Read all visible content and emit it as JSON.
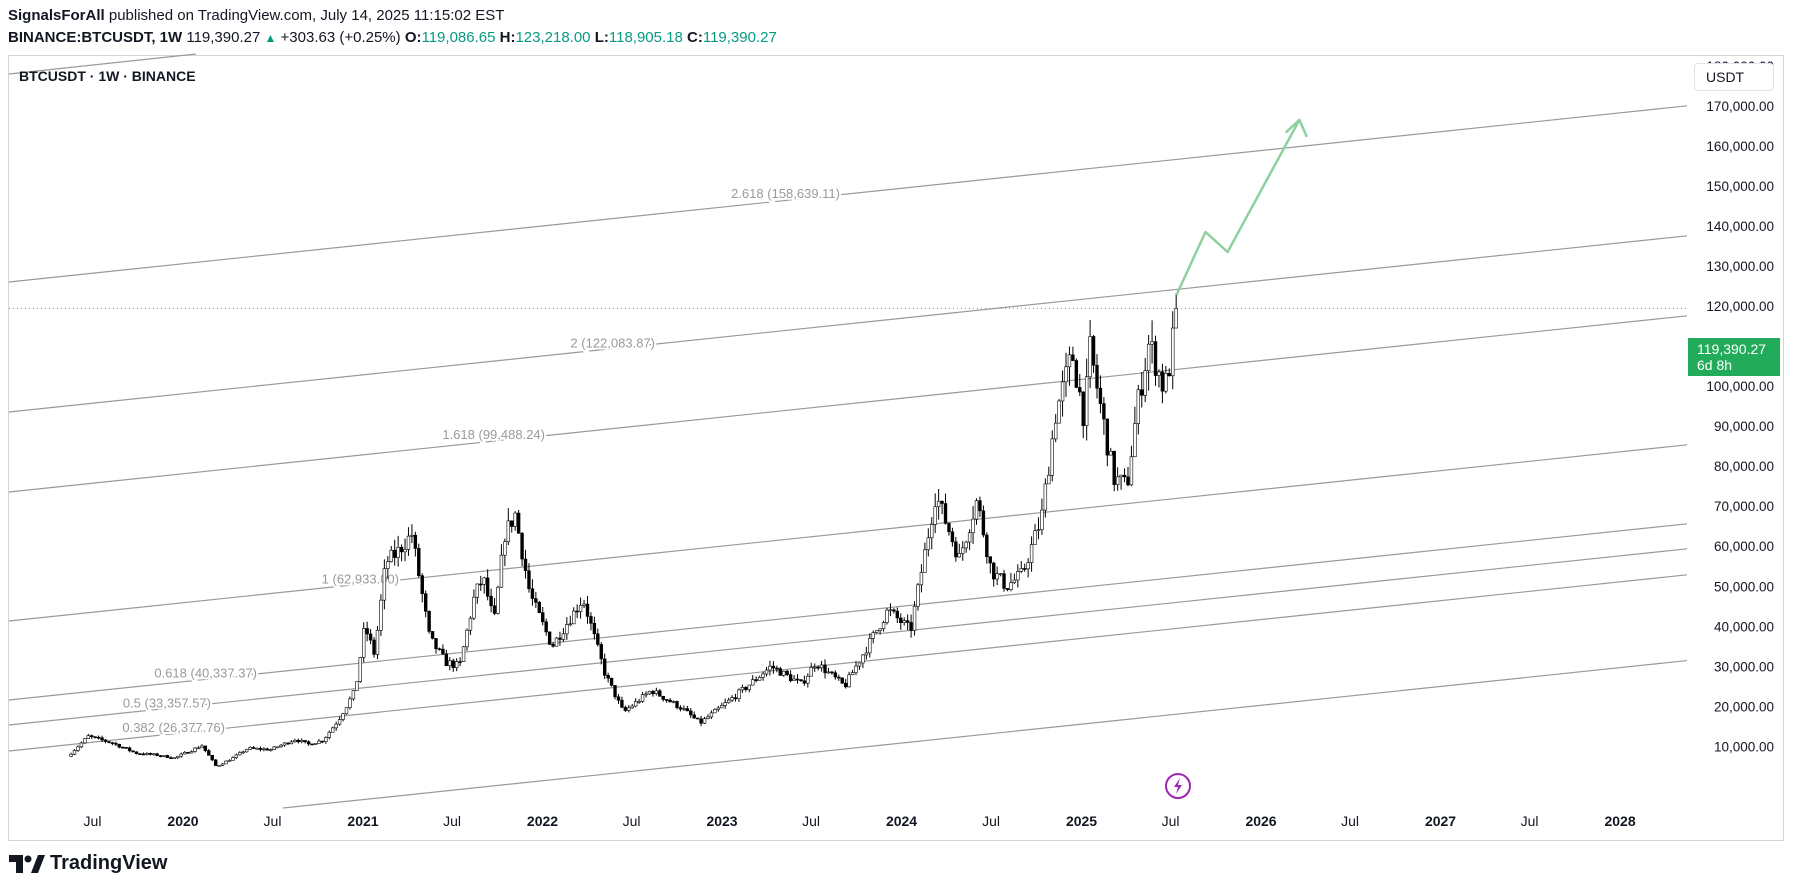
{
  "header": {
    "author": "SignalsForAll",
    "published": " published on TradingView.com, July 14, 2025 11:15:02 EST",
    "symbol_tf": "BINANCE:BTCUSDT, 1W",
    "last": "119,390.27",
    "change": "+303.63 (+0.25%)",
    "o_label": "O:",
    "o": "119,086.65",
    "h_label": "H:",
    "h": "123,218.00",
    "l_label": "L:",
    "l": "118,905.18",
    "c_label": "C:",
    "c": "119,390.27"
  },
  "legend_title": "BTCUSDT · 1W · BINANCE",
  "currency": "USDT",
  "price_tag": {
    "price": "119,390.27",
    "countdown": "6d 8h"
  },
  "footer": {
    "logo": "TradingView"
  },
  "colors": {
    "up": "#089981",
    "price_tag": "#22ab5a",
    "fib_line": "#9a9a9a",
    "projection": "#8fd19e",
    "lightning": "#9c27b0"
  },
  "icons": [
    "tradingview-logo-icon",
    "lightning-icon"
  ],
  "chart_data": {
    "type": "candlestick",
    "symbol": "BTCUSDT",
    "interval": "1W",
    "exchange": "BINANCE",
    "y_axis": {
      "side": "right",
      "ticks": [
        10000,
        20000,
        30000,
        40000,
        50000,
        60000,
        70000,
        80000,
        90000,
        100000,
        110000,
        120000,
        130000,
        140000,
        150000,
        160000,
        170000,
        180000
      ],
      "tick_labels": [
        "10,000.00",
        "20,000.00",
        "30,000.00",
        "40,000.00",
        "50,000.00",
        "60,000.00",
        "70,000.00",
        "80,000.00",
        "90,000.00",
        "100,000.00",
        "110,000.00",
        "120,000.00",
        "130,000.00",
        "140,000.00",
        "150,000.00",
        "160,000.00",
        "170,000.00",
        "180,000.00"
      ],
      "range": [
        4000,
        186000
      ]
    },
    "x_axis": {
      "range": [
        "2019-05-01",
        "2028-07-01"
      ],
      "ticks": [
        {
          "date": "2019-07-01",
          "label": "Jul"
        },
        {
          "date": "2020-01-01",
          "label": "2020"
        },
        {
          "date": "2020-07-01",
          "label": "Jul"
        },
        {
          "date": "2021-01-01",
          "label": "2021"
        },
        {
          "date": "2021-07-01",
          "label": "Jul"
        },
        {
          "date": "2022-01-01",
          "label": "2022"
        },
        {
          "date": "2022-07-01",
          "label": "Jul"
        },
        {
          "date": "2023-01-01",
          "label": "2023"
        },
        {
          "date": "2023-07-01",
          "label": "Jul"
        },
        {
          "date": "2024-01-01",
          "label": "2024"
        },
        {
          "date": "2024-07-01",
          "label": "Jul"
        },
        {
          "date": "2025-01-01",
          "label": "2025"
        },
        {
          "date": "2025-07-01",
          "label": "Jul"
        },
        {
          "date": "2026-01-01",
          "label": "2026"
        },
        {
          "date": "2026-07-01",
          "label": "Jul"
        },
        {
          "date": "2027-01-01",
          "label": "2027"
        },
        {
          "date": "2027-07-01",
          "label": "Jul"
        },
        {
          "date": "2028-01-01",
          "label": "2028"
        }
      ]
    },
    "price_path": [
      [
        "2019-05-15",
        7500
      ],
      [
        "2019-06-26",
        12500
      ],
      [
        "2019-08-15",
        10800
      ],
      [
        "2019-10-01",
        8300
      ],
      [
        "2019-11-15",
        7800
      ],
      [
        "2019-12-18",
        7100
      ],
      [
        "2020-02-12",
        10200
      ],
      [
        "2020-03-12",
        5000
      ],
      [
        "2020-04-15",
        7100
      ],
      [
        "2020-05-15",
        9500
      ],
      [
        "2020-07-01",
        9200
      ],
      [
        "2020-08-20",
        11800
      ],
      [
        "2020-09-15",
        10500
      ],
      [
        "2020-10-15",
        11500
      ],
      [
        "2020-11-15",
        16500
      ],
      [
        "2020-12-20",
        24000
      ],
      [
        "2021-01-08",
        40000
      ],
      [
        "2021-01-28",
        33000
      ],
      [
        "2021-02-20",
        56000
      ],
      [
        "2021-03-12",
        58000
      ],
      [
        "2021-04-14",
        63000
      ],
      [
        "2021-05-20",
        37000
      ],
      [
        "2021-06-22",
        31000
      ],
      [
        "2021-07-20",
        30000
      ],
      [
        "2021-08-20",
        48000
      ],
      [
        "2021-09-06",
        52000
      ],
      [
        "2021-09-28",
        41000
      ],
      [
        "2021-10-20",
        63000
      ],
      [
        "2021-11-10",
        68000
      ],
      [
        "2021-12-10",
        48000
      ],
      [
        "2022-01-24",
        35000
      ],
      [
        "2022-03-28",
        47000
      ],
      [
        "2022-05-12",
        28000
      ],
      [
        "2022-06-18",
        18500
      ],
      [
        "2022-08-14",
        24000
      ],
      [
        "2022-10-15",
        19500
      ],
      [
        "2022-11-21",
        15800
      ],
      [
        "2023-01-15",
        21000
      ],
      [
        "2023-02-20",
        24500
      ],
      [
        "2023-04-14",
        30000
      ],
      [
        "2023-06-15",
        25500
      ],
      [
        "2023-07-14",
        31000
      ],
      [
        "2023-09-11",
        25000
      ],
      [
        "2023-10-25",
        34500
      ],
      [
        "2023-12-08",
        44000
      ],
      [
        "2024-01-23",
        39000
      ],
      [
        "2024-03-14",
        73000
      ],
      [
        "2024-05-01",
        57000
      ],
      [
        "2024-06-06",
        71500
      ],
      [
        "2024-07-05",
        54000
      ],
      [
        "2024-08-05",
        50000
      ],
      [
        "2024-09-06",
        53000
      ],
      [
        "2024-10-15",
        67000
      ],
      [
        "2024-11-13",
        93000
      ],
      [
        "2024-12-17",
        108000
      ],
      [
        "2025-01-10",
        92000
      ],
      [
        "2025-01-22",
        109000
      ],
      [
        "2025-03-11",
        77000
      ],
      [
        "2025-04-07",
        75000
      ],
      [
        "2025-04-28",
        95000
      ],
      [
        "2025-05-22",
        111000
      ],
      [
        "2025-06-22",
        99000
      ],
      [
        "2025-07-07",
        108000
      ],
      [
        "2025-07-14",
        119390
      ]
    ],
    "fib_channel": {
      "levels": [
        {
          "label": "0.382 (26,377.76)"
        },
        {
          "label": "0.5 (33,357.57)"
        },
        {
          "label": "0.618 (40,337.37)"
        },
        {
          "label": "1 (62,933.00)"
        },
        {
          "label": "1.618 (99,488.24)"
        },
        {
          "label": "2 (122,083.87)"
        },
        {
          "label": "2.618 (158,639.11)"
        }
      ]
    },
    "projection_path": [
      [
        "2025-07-14",
        123000
      ],
      [
        "2025-09-10",
        138500
      ],
      [
        "2025-10-25",
        133500
      ],
      [
        "2026-03-20",
        166500
      ]
    ],
    "last_price": 119390.27,
    "grid": false,
    "legend": "top-left"
  }
}
